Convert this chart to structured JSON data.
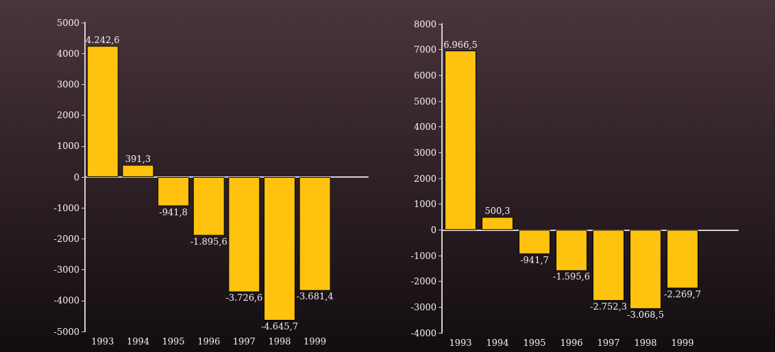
{
  "chart_data": [
    {
      "type": "bar",
      "categories": [
        "1993",
        "1994",
        "1995",
        "1996",
        "1997",
        "1998",
        "1999"
      ],
      "values": [
        4242.6,
        391.3,
        -941.8,
        -1895.6,
        -3726.6,
        -4645.7,
        -3681.4
      ],
      "value_labels": [
        "4.242,6",
        "391,3",
        "-941,8",
        "-1.895,6",
        "-3.726,6",
        "-4.645,7",
        "-3.681,4"
      ],
      "color": "#ffc20e",
      "ylim": [
        -5000,
        5000
      ],
      "yticks": [
        -5000,
        -4000,
        -3000,
        -2000,
        -1000,
        0,
        1000,
        2000,
        3000,
        4000,
        5000
      ]
    },
    {
      "type": "bar",
      "categories": [
        "1993",
        "1994",
        "1995",
        "1996",
        "1997",
        "1998",
        "1999"
      ],
      "values": [
        6966.5,
        500.3,
        -941.7,
        -1595.6,
        -2752.3,
        -3068.5,
        -2269.7
      ],
      "value_labels": [
        "6.966,5",
        "500,3",
        "-941,7",
        "-1.595,6",
        "-2.752,3",
        "-3.068,5",
        "-2.269,7"
      ],
      "color": "#ffc20e",
      "ylim": [
        -4000,
        8000
      ],
      "yticks": [
        -4000,
        -3000,
        -2000,
        -1000,
        0,
        1000,
        2000,
        3000,
        4000,
        5000,
        6000,
        7000,
        8000
      ]
    }
  ]
}
